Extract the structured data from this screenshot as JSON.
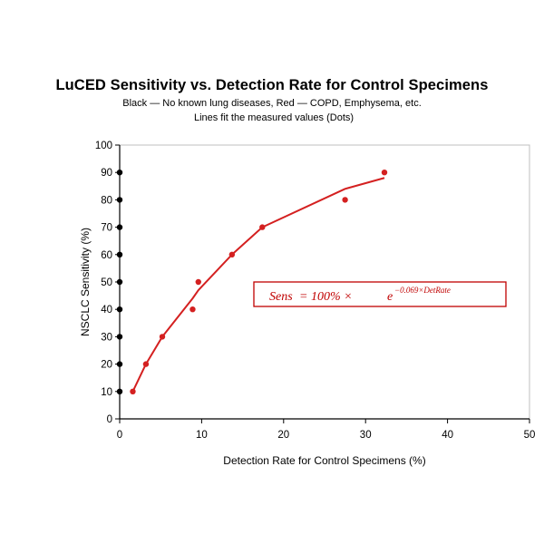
{
  "chart_data": {
    "type": "scatter",
    "title": "LuCED Sensitivity vs. Detection Rate for Control Specimens",
    "subtitle_lines": [
      "Black — No known lung diseases, Red — COPD, Emphysema, etc.",
      "Lines fit the measured values (Dots)"
    ],
    "xlabel": "Detection Rate for Control Specimens (%)",
    "ylabel": "NSCLC Sensitivity (%)",
    "xlim": [
      0,
      50
    ],
    "ylim": [
      0,
      100
    ],
    "xticks": [
      0,
      10,
      20,
      30,
      40,
      50
    ],
    "yticks": [
      0,
      10,
      20,
      30,
      40,
      50,
      60,
      70,
      80,
      90,
      100
    ],
    "annotation": {
      "lhs": "Sens",
      "rhs": "= 100% ×",
      "base": "e",
      "exponent": "−0.069×DetRate"
    },
    "series": [
      {
        "name": "Black — No known lung diseases",
        "color": "#000000",
        "points": [
          {
            "x": 0,
            "y": 10
          },
          {
            "x": 0,
            "y": 20
          },
          {
            "x": 0,
            "y": 30
          },
          {
            "x": 0,
            "y": 40
          },
          {
            "x": 0,
            "y": 50
          },
          {
            "x": 0,
            "y": 60
          },
          {
            "x": 0,
            "y": 70
          },
          {
            "x": 0,
            "y": 80
          },
          {
            "x": 0,
            "y": 90
          }
        ],
        "fit": []
      },
      {
        "name": "Red — COPD, Emphysema, etc.",
        "color": "#d42020",
        "points": [
          {
            "x": 1.6,
            "y": 10
          },
          {
            "x": 3.2,
            "y": 20
          },
          {
            "x": 5.2,
            "y": 30
          },
          {
            "x": 8.9,
            "y": 40
          },
          {
            "x": 9.6,
            "y": 50
          },
          {
            "x": 13.7,
            "y": 60
          },
          {
            "x": 17.4,
            "y": 70
          },
          {
            "x": 27.5,
            "y": 80
          },
          {
            "x": 32.3,
            "y": 90
          }
        ],
        "fit": [
          {
            "x": 1.6,
            "y": 10
          },
          {
            "x": 3.2,
            "y": 20
          },
          {
            "x": 5.2,
            "y": 30
          },
          {
            "x": 8.9,
            "y": 44
          },
          {
            "x": 9.6,
            "y": 47
          },
          {
            "x": 13.7,
            "y": 60
          },
          {
            "x": 17.4,
            "y": 70
          },
          {
            "x": 27.5,
            "y": 84
          },
          {
            "x": 32.3,
            "y": 88
          }
        ]
      }
    ]
  }
}
